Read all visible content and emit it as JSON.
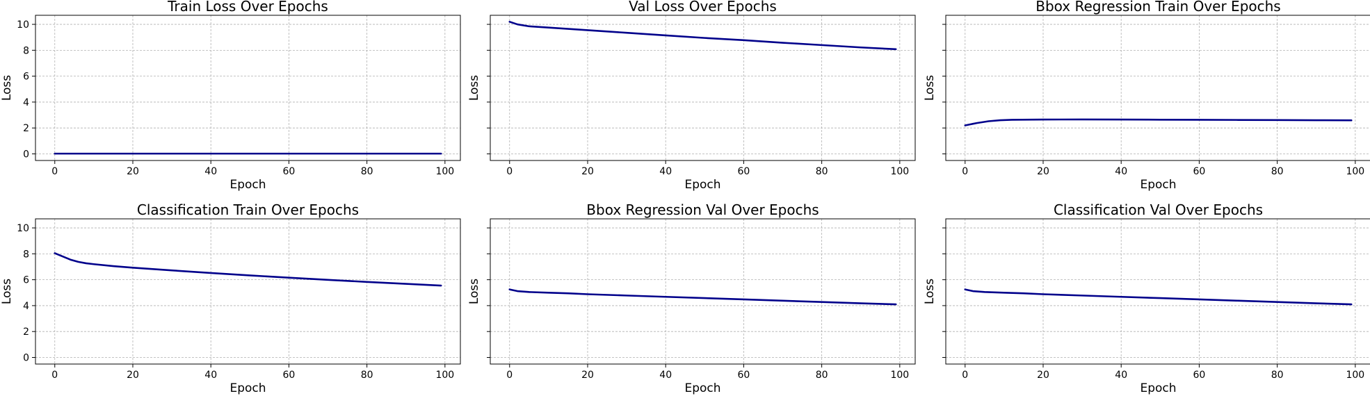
{
  "style": {
    "line_color": "#00008b",
    "grid_color": "#b0b0b0"
  },
  "chart_data": [
    {
      "type": "line",
      "title": "Train Loss Over Epochs",
      "xlabel": "Epoch",
      "ylabel": "Loss",
      "xlim": [
        -4.95,
        103.95
      ],
      "ylim": [
        -0.51,
        10.7
      ],
      "grid": true,
      "x_ticks": [
        0,
        20,
        40,
        60,
        80,
        100
      ],
      "y_ticks": [
        0,
        2,
        4,
        6,
        8,
        10
      ],
      "show_y_tick_labels": true,
      "series": [
        {
          "x": [
            0,
            10,
            20,
            30,
            40,
            50,
            60,
            70,
            80,
            90,
            99
          ],
          "y": [
            0.02,
            0.02,
            0.02,
            0.02,
            0.02,
            0.02,
            0.02,
            0.02,
            0.02,
            0.02,
            0.02
          ]
        }
      ]
    },
    {
      "type": "line",
      "title": "Val Loss Over Epochs",
      "xlabel": "Epoch",
      "ylabel": "Loss",
      "xlim": [
        -4.95,
        103.95
      ],
      "ylim": [
        -0.51,
        10.7
      ],
      "grid": true,
      "x_ticks": [
        0,
        20,
        40,
        60,
        80,
        100
      ],
      "y_ticks": [
        0,
        2,
        4,
        6,
        8,
        10
      ],
      "show_y_tick_labels": false,
      "series": [
        {
          "x": [
            0,
            2,
            5,
            10,
            15,
            20,
            30,
            40,
            50,
            60,
            70,
            80,
            90,
            99
          ],
          "y": [
            10.2,
            10.0,
            9.85,
            9.75,
            9.65,
            9.55,
            9.35,
            9.15,
            8.95,
            8.78,
            8.58,
            8.4,
            8.22,
            8.08
          ]
        }
      ]
    },
    {
      "type": "line",
      "title": "Bbox Regression Train Over Epochs",
      "xlabel": "Epoch",
      "ylabel": "Loss",
      "xlim": [
        -4.95,
        103.95
      ],
      "ylim": [
        -0.51,
        10.7
      ],
      "grid": true,
      "x_ticks": [
        0,
        20,
        40,
        60,
        80,
        100
      ],
      "y_ticks": [
        0,
        2,
        4,
        6,
        8,
        10
      ],
      "show_y_tick_labels": false,
      "series": [
        {
          "x": [
            0,
            3,
            6,
            9,
            12,
            20,
            30,
            40,
            50,
            60,
            70,
            80,
            90,
            99
          ],
          "y": [
            2.2,
            2.38,
            2.52,
            2.6,
            2.63,
            2.65,
            2.66,
            2.65,
            2.64,
            2.63,
            2.62,
            2.61,
            2.6,
            2.59
          ]
        }
      ]
    },
    {
      "type": "line",
      "title": "Classification Train Over Epochs",
      "xlabel": "Epoch",
      "ylabel": "Loss",
      "xlim": [
        -4.95,
        103.95
      ],
      "ylim": [
        -0.51,
        10.7
      ],
      "grid": true,
      "x_ticks": [
        0,
        20,
        40,
        60,
        80,
        100
      ],
      "y_ticks": [
        0,
        2,
        4,
        6,
        8,
        10
      ],
      "show_y_tick_labels": true,
      "series": [
        {
          "x": [
            0,
            2,
            4,
            6,
            8,
            10,
            15,
            20,
            30,
            40,
            50,
            60,
            70,
            80,
            90,
            99
          ],
          "y": [
            8.05,
            7.8,
            7.55,
            7.38,
            7.27,
            7.2,
            7.05,
            6.93,
            6.72,
            6.52,
            6.33,
            6.16,
            5.99,
            5.83,
            5.68,
            5.55
          ]
        }
      ]
    },
    {
      "type": "line",
      "title": "Bbox Regression Val Over Epochs",
      "xlabel": "Epoch",
      "ylabel": "Loss",
      "xlim": [
        -4.95,
        103.95
      ],
      "ylim": [
        -0.51,
        10.7
      ],
      "grid": true,
      "x_ticks": [
        0,
        20,
        40,
        60,
        80,
        100
      ],
      "y_ticks": [
        0,
        2,
        4,
        6,
        8,
        10
      ],
      "show_y_tick_labels": false,
      "series": [
        {
          "x": [
            0,
            2,
            5,
            10,
            15,
            20,
            30,
            40,
            50,
            60,
            70,
            80,
            90,
            99
          ],
          "y": [
            5.25,
            5.12,
            5.05,
            5.0,
            4.95,
            4.88,
            4.78,
            4.68,
            4.58,
            4.48,
            4.38,
            4.28,
            4.18,
            4.1
          ]
        }
      ]
    },
    {
      "type": "line",
      "title": "Classification Val Over Epochs",
      "xlabel": "Epoch",
      "ylabel": "Loss",
      "xlim": [
        -4.95,
        103.95
      ],
      "ylim": [
        -0.51,
        10.7
      ],
      "grid": true,
      "x_ticks": [
        0,
        20,
        40,
        60,
        80,
        100
      ],
      "y_ticks": [
        0,
        2,
        4,
        6,
        8,
        10
      ],
      "show_y_tick_labels": false,
      "series": [
        {
          "x": [
            0,
            2,
            5,
            10,
            15,
            20,
            30,
            40,
            50,
            60,
            70,
            80,
            90,
            99
          ],
          "y": [
            5.25,
            5.12,
            5.05,
            5.0,
            4.95,
            4.88,
            4.78,
            4.68,
            4.58,
            4.48,
            4.38,
            4.28,
            4.18,
            4.1
          ]
        }
      ]
    }
  ]
}
